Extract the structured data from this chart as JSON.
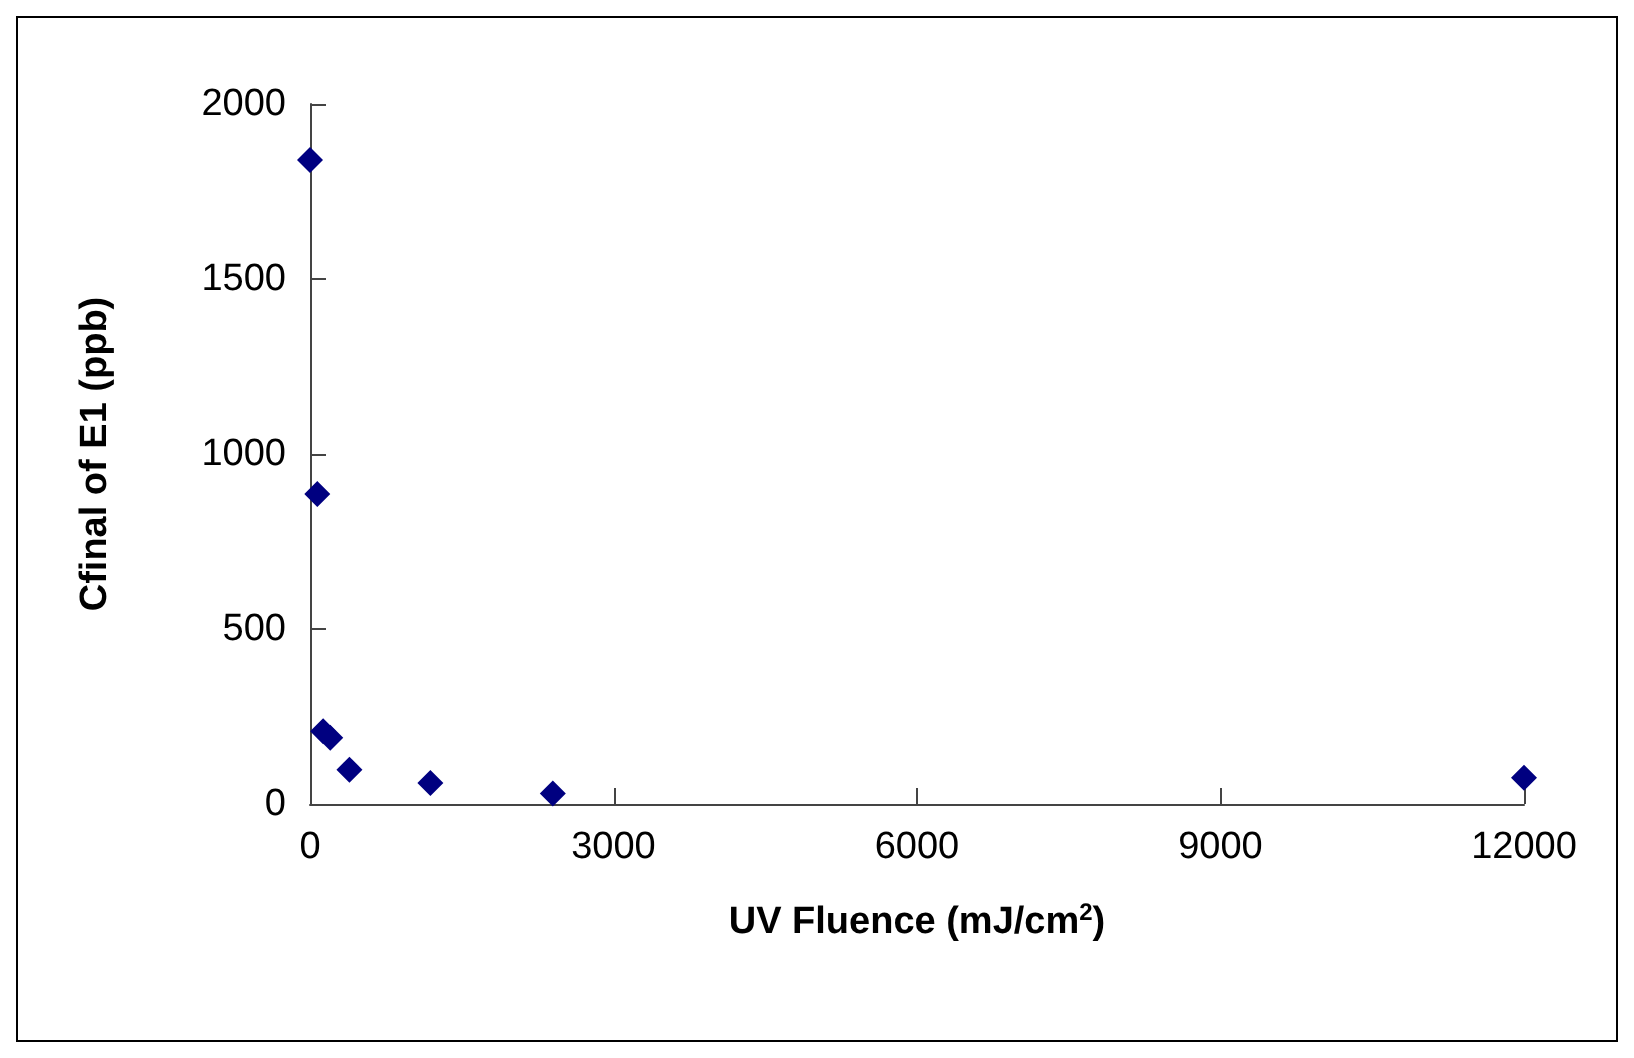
{
  "chart_data": {
    "type": "scatter",
    "xlabel": "UV Fluence (mJ/cm$^{2}$)",
    "ylabel": "Cfinal of E1 (ppb)",
    "x": [
      0,
      72,
      130,
      200,
      390,
      1190,
      2400,
      12000
    ],
    "series": [
      {
        "color": "#000080",
        "values": [
          1840,
          886,
          208,
          189,
          98,
          60,
          30,
          75
        ]
      }
    ],
    "xlim": [
      0,
      12000
    ],
    "xticks": [
      0,
      3000,
      6000,
      9000,
      12000
    ],
    "ylim": [
      0,
      2000
    ],
    "yticks": [
      0,
      500,
      1000,
      1500,
      2000
    ],
    "grid": false,
    "marker": "diamond"
  }
}
